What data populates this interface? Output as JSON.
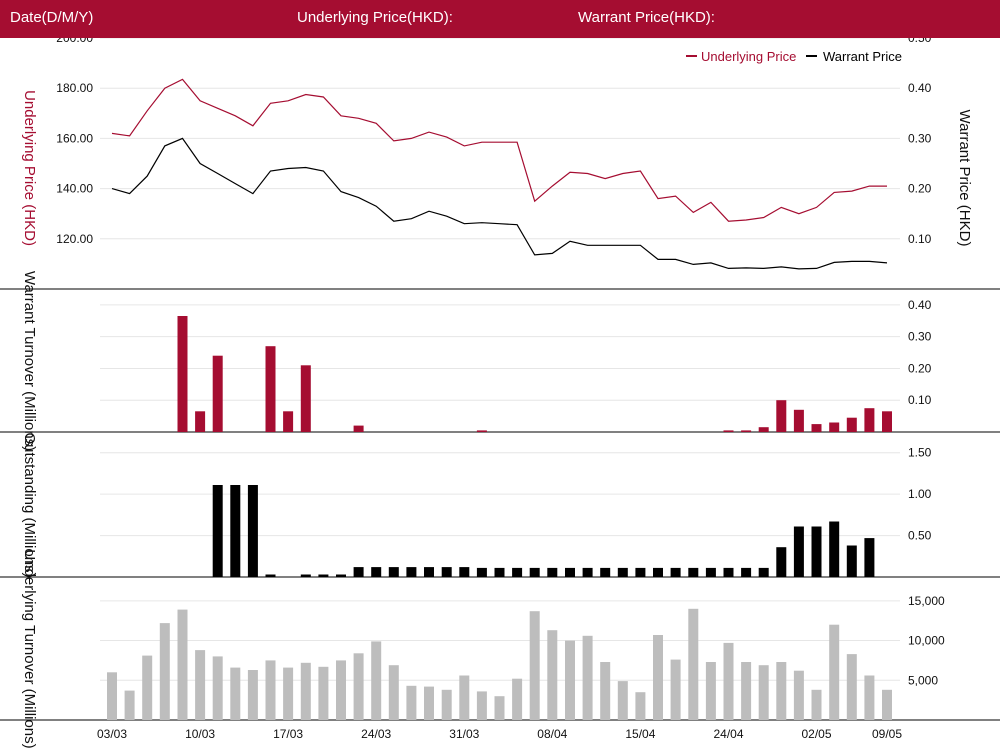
{
  "header": {
    "date_label": "Date(D/M/Y)",
    "underlying_label": "Underlying Price(HKD):",
    "warrant_label": "Warrant Price(HKD):"
  },
  "colors": {
    "header_bg": "#a50d31",
    "underlying": "#a50d31",
    "warrant": "#000000",
    "underlying_turnover": "#bdbdbd"
  },
  "chart_data": [
    {
      "type": "line",
      "legend": [
        "Underlying Price",
        "Warrant Price"
      ],
      "legend_position": "top-right",
      "y_left_label": "Underlying Price (HKD)",
      "y_right_label": "Warrant Price (HKD)",
      "y_left_ticks": [
        "200.00",
        "180.00",
        "160.00",
        "140.00",
        "120.00"
      ],
      "y_right_ticks": [
        "0.50",
        "0.40",
        "0.30",
        "0.20",
        "0.10"
      ],
      "y_left_range": [
        100,
        200
      ],
      "y_right_range": [
        0,
        0.5
      ],
      "series": [
        {
          "name": "Underlying Price",
          "axis": "left",
          "values": [
            162,
            161,
            171,
            180,
            183.5,
            175,
            172,
            169,
            165,
            174,
            175,
            177.5,
            176.5,
            169,
            168,
            166,
            159,
            160,
            162.5,
            160.5,
            157,
            158.5,
            158.5,
            158.5,
            135,
            141,
            146.5,
            146,
            144,
            146,
            147,
            136,
            137,
            130.5,
            134.5,
            127,
            127.5,
            128.5,
            132.5,
            130,
            132.5,
            138.5,
            139,
            141,
            141
          ]
        },
        {
          "name": "Warrant Price",
          "axis": "right",
          "values": [
            0.2,
            0.19,
            0.225,
            0.285,
            0.3,
            0.25,
            0.23,
            0.21,
            0.19,
            0.235,
            0.24,
            0.242,
            0.235,
            0.194,
            0.182,
            0.165,
            0.135,
            0.14,
            0.155,
            0.145,
            0.13,
            0.132,
            0.13,
            0.128,
            0.068,
            0.071,
            0.095,
            0.087,
            0.087,
            0.087,
            0.087,
            0.059,
            0.059,
            0.049,
            0.052,
            0.041,
            0.042,
            0.041,
            0.044,
            0.04,
            0.041,
            0.053,
            0.055,
            0.055,
            0.052
          ]
        }
      ]
    },
    {
      "type": "bar",
      "ylabel": "Warrant Turnover (Millions)",
      "y_ticks": [
        "0.40",
        "0.30",
        "0.20",
        "0.10"
      ],
      "y_range": [
        0,
        0.45
      ],
      "values": [
        0,
        0,
        0,
        0,
        0.365,
        0.065,
        0.24,
        0,
        0,
        0.27,
        0.065,
        0.21,
        0,
        0,
        0.02,
        0,
        0,
        0,
        0,
        0,
        0,
        0.005,
        0,
        0,
        0,
        0,
        0,
        0,
        0,
        0,
        0,
        0,
        0,
        0,
        0,
        0.005,
        0.005,
        0.015,
        0.1,
        0.07,
        0.025,
        0.03,
        0.045,
        0.075,
        0.065
      ]
    },
    {
      "type": "bar",
      "ylabel": "Outstanding (Millions)",
      "y_ticks": [
        "1.50",
        "1.00",
        "0.50"
      ],
      "y_range": [
        0,
        1.75
      ],
      "values": [
        0,
        0,
        0,
        0,
        0,
        0,
        1.11,
        1.11,
        1.11,
        0.03,
        0,
        0.03,
        0.03,
        0.03,
        0.12,
        0.12,
        0.12,
        0.12,
        0.12,
        0.12,
        0.12,
        0.11,
        0.11,
        0.11,
        0.11,
        0.11,
        0.11,
        0.11,
        0.11,
        0.11,
        0.11,
        0.11,
        0.11,
        0.11,
        0.11,
        0.11,
        0.11,
        0.11,
        0.36,
        0.61,
        0.61,
        0.67,
        0.38,
        0.47,
        0
      ]
    },
    {
      "type": "bar",
      "ylabel": "Underlying Turnover (Millions)",
      "y_ticks": [
        "15,000",
        "10,000",
        "5,000"
      ],
      "y_range": [
        0,
        18000
      ],
      "values": [
        6000,
        3700,
        8100,
        12200,
        13900,
        8800,
        8000,
        6600,
        6300,
        7500,
        6600,
        7200,
        6700,
        7500,
        8400,
        9900,
        6900,
        4300,
        4200,
        3800,
        5600,
        3600,
        3000,
        5200,
        13700,
        11300,
        10000,
        10600,
        7300,
        4900,
        3500,
        10700,
        7600,
        14000,
        7300,
        9700,
        7300,
        6900,
        7300,
        6200,
        3800,
        12000,
        8300,
        5600,
        3800
      ]
    }
  ],
  "x_axis": {
    "tick_labels": [
      "03/03",
      "10/03",
      "17/03",
      "24/03",
      "31/03",
      "08/04",
      "15/04",
      "24/04",
      "02/05",
      "09/05"
    ],
    "tick_indices": [
      0,
      5,
      10,
      15,
      20,
      25,
      30,
      35,
      40,
      44
    ]
  }
}
